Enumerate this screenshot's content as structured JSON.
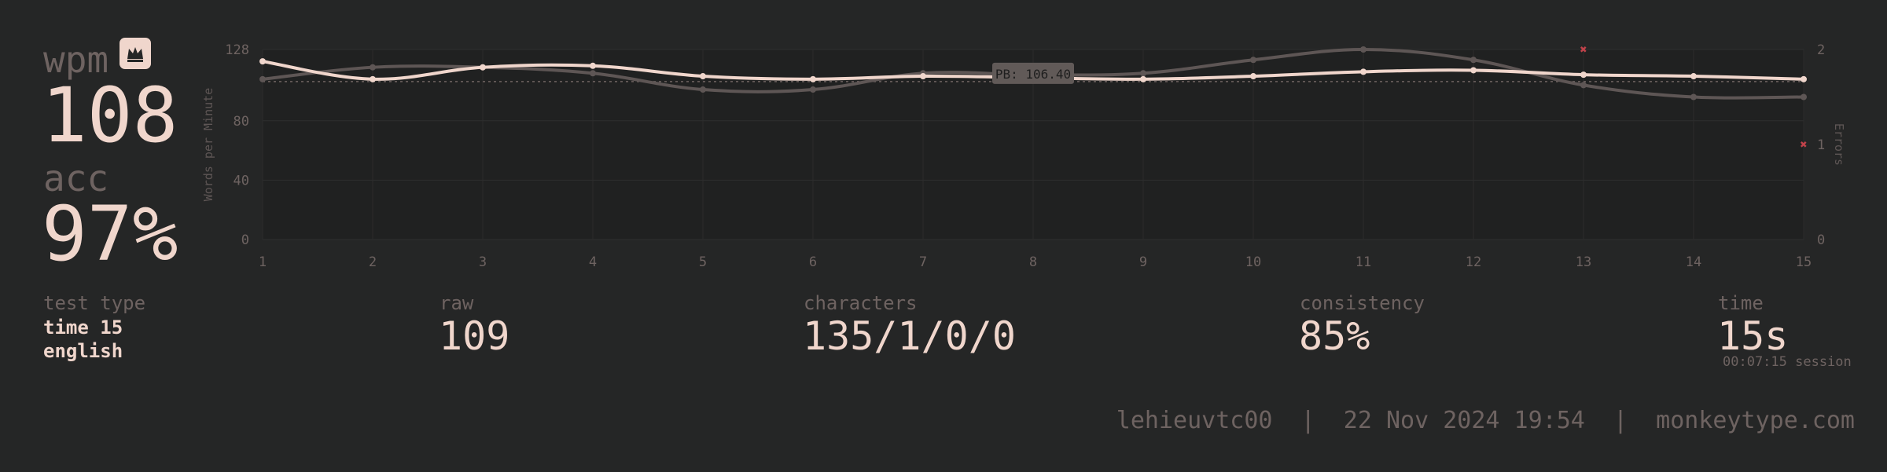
{
  "summary": {
    "wpm_label": "wpm",
    "wpm_value": "108",
    "acc_label": "acc",
    "acc_value": "97%",
    "crown_icon": "crown-icon"
  },
  "chart_data": {
    "type": "line",
    "x": [
      1,
      2,
      3,
      4,
      5,
      6,
      7,
      8,
      9,
      10,
      11,
      12,
      13,
      14,
      15
    ],
    "x_ticks": [
      "1",
      "2",
      "3",
      "4",
      "5",
      "6",
      "7",
      "8",
      "9",
      "10",
      "11",
      "12",
      "13",
      "14",
      "15"
    ],
    "ylabel": "Words per Minute",
    "ylim": [
      0,
      128
    ],
    "y_ticks": [
      "0",
      "40",
      "80",
      "128"
    ],
    "y2label": "Errors",
    "y2lim": [
      0,
      2
    ],
    "y2_ticks": [
      "0",
      "1",
      "2"
    ],
    "grid": true,
    "pb_annotation": "PB: 106.40",
    "pb_value": 106.4,
    "series": [
      {
        "name": "wpm",
        "color": "#f0d6cc",
        "values": [
          120,
          108,
          116,
          117,
          110,
          108,
          110,
          109,
          108,
          110,
          113,
          114,
          111,
          110,
          108
        ]
      },
      {
        "name": "raw",
        "color": "#5e5655",
        "values": [
          108,
          116,
          116,
          112,
          101,
          101,
          112,
          111,
          112,
          121,
          128,
          121,
          104,
          96,
          96
        ]
      }
    ],
    "errors": {
      "color": "#c0424a",
      "points": [
        {
          "x": 13,
          "y": 2
        },
        {
          "x": 15,
          "y": 1
        }
      ]
    }
  },
  "stats": {
    "test_type_label": "test type",
    "test_type_line1": "time 15",
    "test_type_line2": "english",
    "raw_label": "raw",
    "raw_value": "109",
    "characters_label": "characters",
    "characters_value": "135/1/0/0",
    "consistency_label": "consistency",
    "consistency_value": "85%",
    "time_label": "time",
    "time_value": "15s",
    "session_time": "00:07:15 session"
  },
  "footer": {
    "text": "lehieuvtc00  |  22 Nov 2024 19:54  |  monkeytype.com"
  },
  "colors": {
    "background": "#252626",
    "text": "#f0d6cc",
    "sub": "#6e6361",
    "error": "#c0424a"
  }
}
